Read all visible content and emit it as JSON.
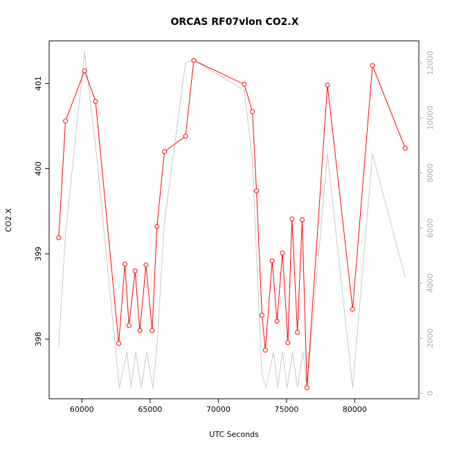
{
  "chart_data": {
    "type": "line",
    "title": "ORCAS RF07vlon CO2.X",
    "xlabel": "UTC Seconds",
    "ylabel": "CO2.X",
    "xlim": [
      57600,
      84700
    ],
    "ylim": [
      397.3,
      401.5
    ],
    "y2lim": [
      -200,
      12800
    ],
    "x_ticks": [
      60000,
      65000,
      70000,
      75000,
      80000
    ],
    "y_ticks": [
      398,
      399,
      400,
      401
    ],
    "y2_ticks": [
      0,
      2000,
      4000,
      6000,
      8000,
      10000,
      12000
    ],
    "grid": false,
    "series": [
      {
        "color": "#ff0000",
        "axis": "left",
        "points": [
          [
            58300,
            399.19
          ],
          [
            58800,
            400.56
          ],
          [
            60200,
            401.15
          ],
          [
            61000,
            400.79
          ],
          [
            62700,
            397.95
          ],
          [
            63150,
            398.88
          ],
          [
            63450,
            398.16
          ],
          [
            63900,
            398.8
          ],
          [
            64250,
            398.1
          ],
          [
            64700,
            398.87
          ],
          [
            65150,
            398.1
          ],
          [
            65500,
            399.32
          ],
          [
            66050,
            400.2
          ],
          [
            67600,
            400.38
          ],
          [
            68200,
            401.27
          ],
          [
            71900,
            400.99
          ],
          [
            72500,
            400.67
          ],
          [
            72800,
            399.74
          ],
          [
            73200,
            398.28
          ],
          [
            73450,
            397.87
          ],
          [
            73950,
            398.92
          ],
          [
            74300,
            398.21
          ],
          [
            74700,
            399.01
          ],
          [
            75100,
            397.96
          ],
          [
            75400,
            399.41
          ],
          [
            75800,
            398.08
          ],
          [
            76150,
            399.4
          ],
          [
            76500,
            397.43
          ],
          [
            78000,
            400.98
          ],
          [
            79850,
            398.35
          ],
          [
            81300,
            401.21
          ],
          [
            83700,
            400.24
          ]
        ]
      },
      {
        "color": "#c8c8c8",
        "axis": "right",
        "points": [
          [
            58300,
            1700
          ],
          [
            58800,
            5800
          ],
          [
            60200,
            12400
          ],
          [
            61000,
            9000
          ],
          [
            62750,
            200
          ],
          [
            63300,
            1500
          ],
          [
            63600,
            200
          ],
          [
            63950,
            1500
          ],
          [
            64350,
            200
          ],
          [
            64750,
            1500
          ],
          [
            65200,
            200
          ],
          [
            65500,
            1700
          ],
          [
            66050,
            6200
          ],
          [
            67600,
            12000
          ],
          [
            68200,
            12100
          ],
          [
            71900,
            11000
          ],
          [
            72500,
            8500
          ],
          [
            72800,
            5000
          ],
          [
            73200,
            700
          ],
          [
            73500,
            200
          ],
          [
            74050,
            1500
          ],
          [
            74350,
            200
          ],
          [
            74700,
            1500
          ],
          [
            75050,
            200
          ],
          [
            75450,
            1500
          ],
          [
            75800,
            200
          ],
          [
            76200,
            1500
          ],
          [
            76500,
            200
          ],
          [
            78000,
            8700
          ],
          [
            79850,
            200
          ],
          [
            81300,
            8700
          ],
          [
            83700,
            4200
          ]
        ]
      }
    ]
  }
}
